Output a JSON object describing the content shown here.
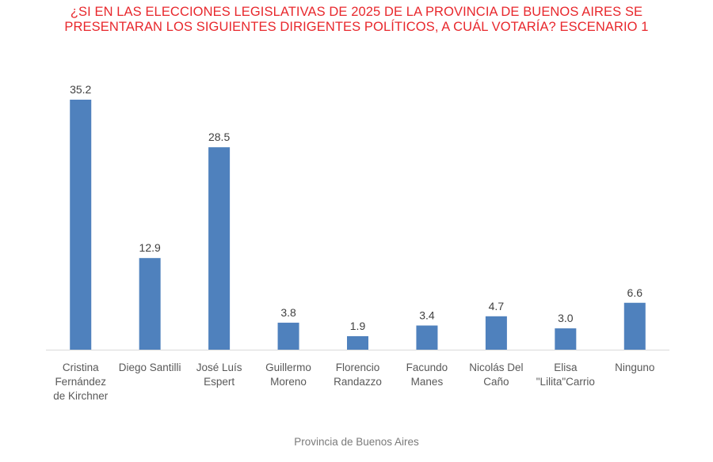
{
  "chart_data": {
    "type": "bar",
    "title_lines": [
      "¿SI EN LAS ELECCIONES LEGISLATIVAS DE 2025 DE LA PROVINCIA DE BUENOS AIRES SE",
      "PRESENTARAN LOS SIGUIENTES DIRIGENTES POLÍTICOS, A CUÁL VOTARÍA? ESCENARIO 1"
    ],
    "categories": [
      [
        "Cristina",
        "Fernández",
        "de Kirchner"
      ],
      [
        "Diego Santilli"
      ],
      [
        "José Luís",
        "Espert"
      ],
      [
        "Guillermo",
        "Moreno"
      ],
      [
        "Florencio",
        "Randazzo"
      ],
      [
        "Facundo",
        "Manes"
      ],
      [
        "Nicolás Del",
        "Caño"
      ],
      [
        "Elisa",
        "\"Lilita\"Carrio"
      ],
      [
        "Ninguno"
      ]
    ],
    "values": [
      35.2,
      12.9,
      28.5,
      3.8,
      1.9,
      3.4,
      4.7,
      3.0,
      6.6
    ],
    "value_labels": [
      "35.2",
      "12.9",
      "28.5",
      "3.8",
      "1.9",
      "3.4",
      "4.7",
      "3.0",
      "6.6"
    ],
    "bar_color": "#4f81bd",
    "title_color": "#e8272c",
    "ylim": [
      0,
      35.2
    ],
    "grid": false,
    "legend": "none",
    "caption": "Provincia de Buenos Aires"
  }
}
